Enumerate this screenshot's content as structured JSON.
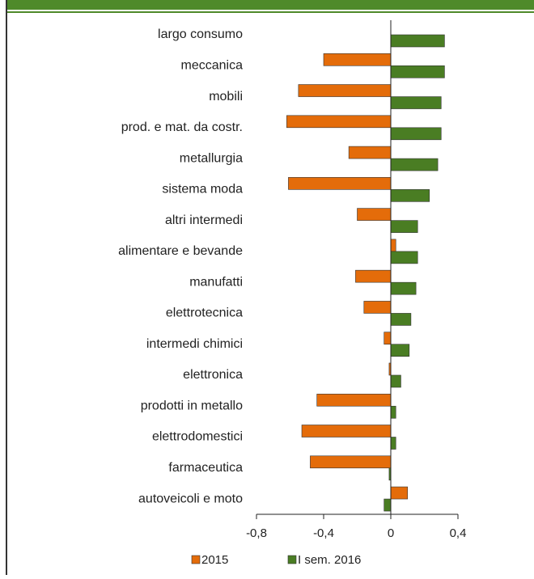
{
  "chart_data": {
    "type": "bar",
    "orientation": "horizontal",
    "categories": [
      "largo consumo",
      "meccanica",
      "mobili",
      "prod. e mat. da costr.",
      "metallurgia",
      "sistema moda",
      "altri intermedi",
      "alimentare e bevande",
      "manufatti",
      "elettrotecnica",
      "intermedi chimici",
      "elettronica",
      "prodotti in metallo",
      "elettrodomestici",
      "farmaceutica",
      "autoveicoli e moto"
    ],
    "series": [
      {
        "name": "2015",
        "color": "#e46c0a",
        "values": [
          0,
          -0.4,
          -0.55,
          -0.62,
          -0.25,
          -0.61,
          -0.2,
          0.03,
          -0.21,
          -0.16,
          -0.04,
          -0.01,
          -0.44,
          -0.53,
          -0.48,
          0.1
        ]
      },
      {
        "name": "I sem. 2016",
        "color": "#4a7d23",
        "values": [
          0.32,
          0.32,
          0.3,
          0.3,
          0.28,
          0.23,
          0.16,
          0.16,
          0.15,
          0.12,
          0.11,
          0.06,
          0.03,
          0.03,
          -0.01,
          -0.04
        ]
      }
    ],
    "xlim": [
      -0.8,
      0.4
    ],
    "xticks": [
      {
        "value": -0.8,
        "label": "-0,8"
      },
      {
        "value": -0.4,
        "label": "-0,4"
      },
      0,
      {
        "value": 0.4,
        "label": "0,4"
      }
    ],
    "legend": "bottom"
  }
}
